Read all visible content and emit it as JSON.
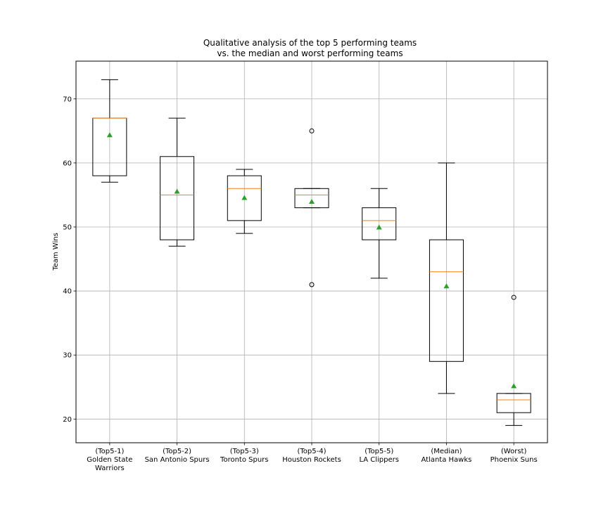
{
  "chart_data": {
    "type": "box",
    "title_lines": [
      "Qualitative analysis of the top 5 performing teams",
      "vs. the median and worst performing teams"
    ],
    "ylabel": "Team Wins",
    "xlabel": "",
    "ylim": [
      16.3,
      75.9
    ],
    "yticks": [
      20,
      30,
      40,
      50,
      60,
      70
    ],
    "grid": true,
    "categories": [
      [
        "(Top5-1)",
        "Golden State",
        "Warriors"
      ],
      [
        "(Top5-2)",
        "San Antonio Spurs"
      ],
      [
        "(Top5-3)",
        "Toronto Spurs"
      ],
      [
        "(Top5-4)",
        "Houston Rockets"
      ],
      [
        "(Top5-5)",
        "LA Clippers"
      ],
      [
        "(Median)",
        "Atlanta Hawks"
      ],
      [
        "(Worst)",
        "Phoenix Suns"
      ]
    ],
    "boxes": [
      {
        "whisker_low": 57,
        "q1": 58,
        "median": 67,
        "q3": 67,
        "whisker_high": 73,
        "mean": 64.4,
        "outliers": []
      },
      {
        "whisker_low": 47,
        "q1": 48,
        "median": 55,
        "q3": 61,
        "whisker_high": 67,
        "mean": 55.6,
        "outliers": []
      },
      {
        "whisker_low": 49,
        "q1": 51,
        "median": 56,
        "q3": 58,
        "whisker_high": 59,
        "mean": 54.6,
        "outliers": []
      },
      {
        "whisker_low": 53,
        "q1": 53,
        "median": 55,
        "q3": 56,
        "whisker_high": 56,
        "mean": 54,
        "outliers": [
          65,
          41
        ]
      },
      {
        "whisker_low": 42,
        "q1": 48,
        "median": 51,
        "q3": 53,
        "whisker_high": 56,
        "mean": 50,
        "outliers": []
      },
      {
        "whisker_low": 24,
        "q1": 29,
        "median": 43,
        "q3": 48,
        "whisker_high": 60,
        "mean": 40.8,
        "outliers": []
      },
      {
        "whisker_low": 19,
        "q1": 21,
        "median": 23,
        "q3": 24,
        "whisker_high": 24,
        "mean": 25.2,
        "outliers": [
          39
        ]
      }
    ],
    "colors": {
      "box": "#000000",
      "median": "#ff7f0e",
      "mean": "#2ca02c",
      "grid": "#b0b0b0"
    }
  }
}
